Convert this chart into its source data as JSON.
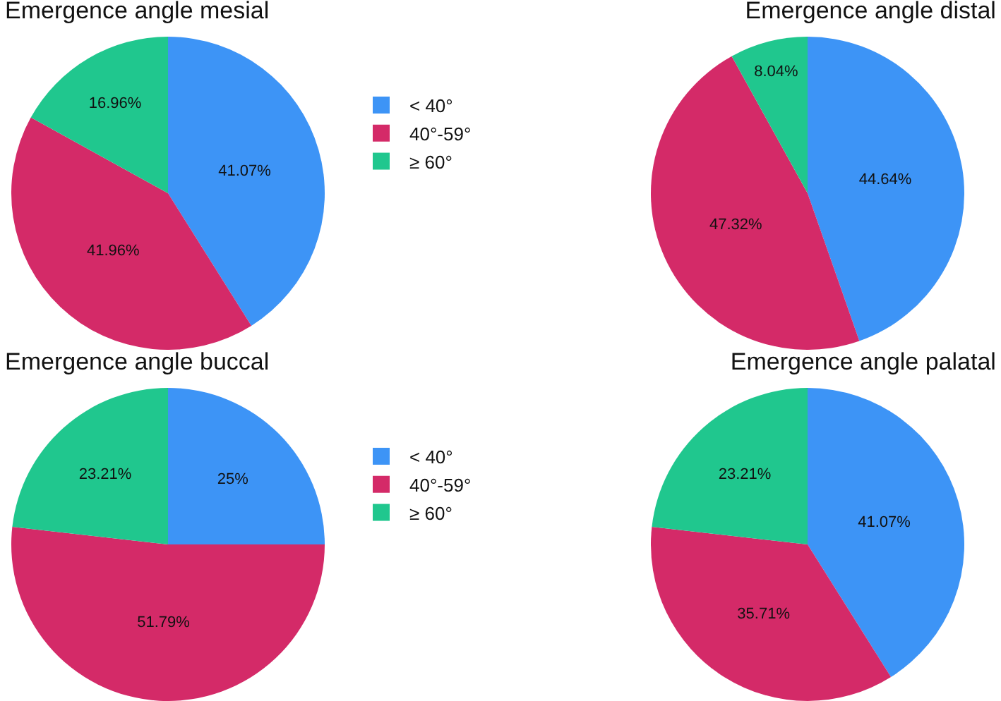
{
  "chart_data": [
    {
      "type": "pie",
      "title": "Emergence angle mesial",
      "categories": [
        "< 40°",
        "40°-59°",
        "≥ 60°"
      ],
      "values": [
        41.07,
        41.96,
        16.96
      ],
      "value_labels": [
        "41.07%",
        "41.96%",
        "16.96%"
      ],
      "colors": [
        "#3d94f6",
        "#d42a68",
        "#20c78e"
      ],
      "legend": "right"
    },
    {
      "type": "pie",
      "title": "Emergence angle distal",
      "categories": [
        null,
        null,
        null
      ],
      "values": [
        44.64,
        47.32,
        8.04
      ],
      "value_labels": [
        "44.64%",
        "47.32%",
        "8.04%"
      ],
      "colors": [
        "#3d94f6",
        "#d42a68",
        "#20c78e"
      ]
    },
    {
      "type": "pie",
      "title": "Emergence angle buccal",
      "categories": [
        "< 40°",
        "40°-59°",
        "≥ 60°"
      ],
      "values": [
        25,
        51.79,
        23.21
      ],
      "value_labels": [
        "25%",
        "51.79%",
        "23.21%"
      ],
      "colors": [
        "#3d94f6",
        "#d42a68",
        "#20c78e"
      ],
      "legend": "right"
    },
    {
      "type": "pie",
      "title": "Emergence angle palatal",
      "categories": [
        null,
        null,
        null
      ],
      "values": [
        41.07,
        35.71,
        23.21
      ],
      "value_labels": [
        "41.07%",
        "35.71%",
        "23.21%"
      ],
      "colors": [
        "#3d94f6",
        "#d42a68",
        "#20c78e"
      ]
    }
  ]
}
